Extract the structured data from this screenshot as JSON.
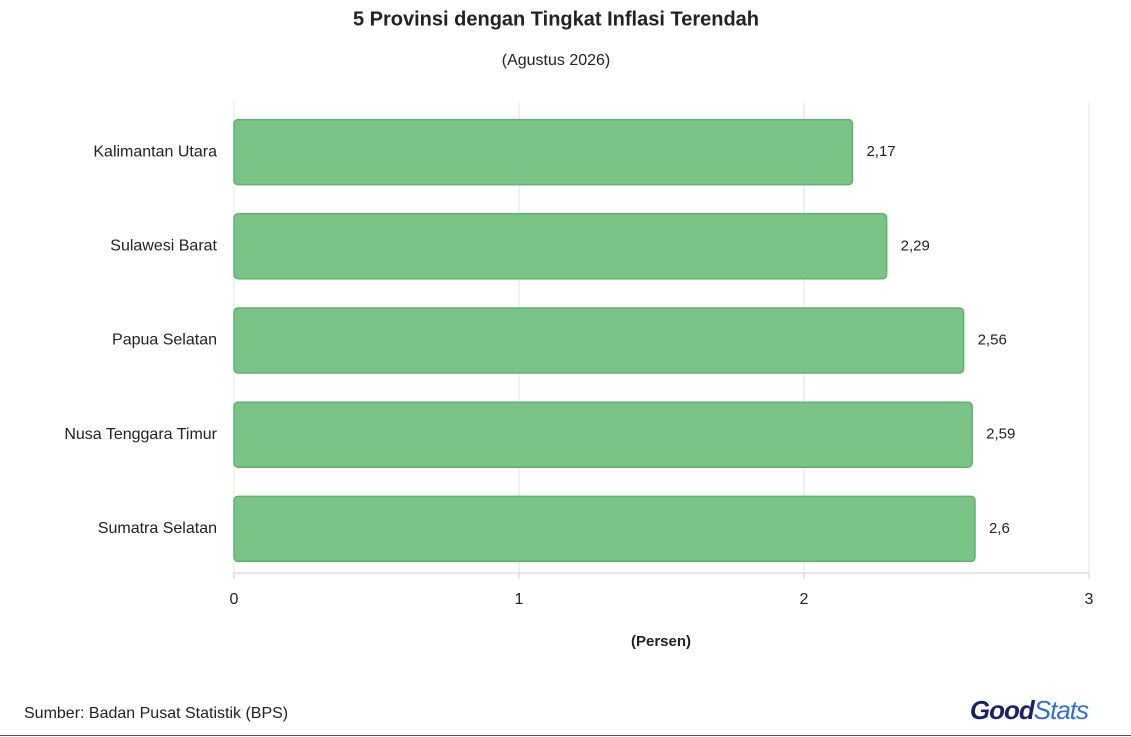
{
  "chart_data": {
    "type": "bar",
    "orientation": "horizontal",
    "title": "5 Provinsi dengan Tingkat Inflasi Terendah",
    "subtitle": "(Agustus 2026)",
    "categories": [
      "Kalimantan Utara",
      "Sulawesi Barat",
      "Papua Selatan",
      "Nusa Tenggara Timur",
      "Sumatra Selatan"
    ],
    "values": [
      2.17,
      2.29,
      2.56,
      2.59,
      2.6
    ],
    "value_labels": [
      "2,17",
      "2,29",
      "2,56",
      "2,59",
      "2,6"
    ],
    "color": "#7bc287",
    "xlim": [
      0,
      3
    ],
    "xticks": [
      0,
      1,
      2,
      3
    ],
    "xlabel": "(Persen)",
    "grid": true
  },
  "source": "Sumber: Badan Pusat Statistik (BPS)",
  "logo": {
    "first": "Good",
    "second": "Stats"
  }
}
